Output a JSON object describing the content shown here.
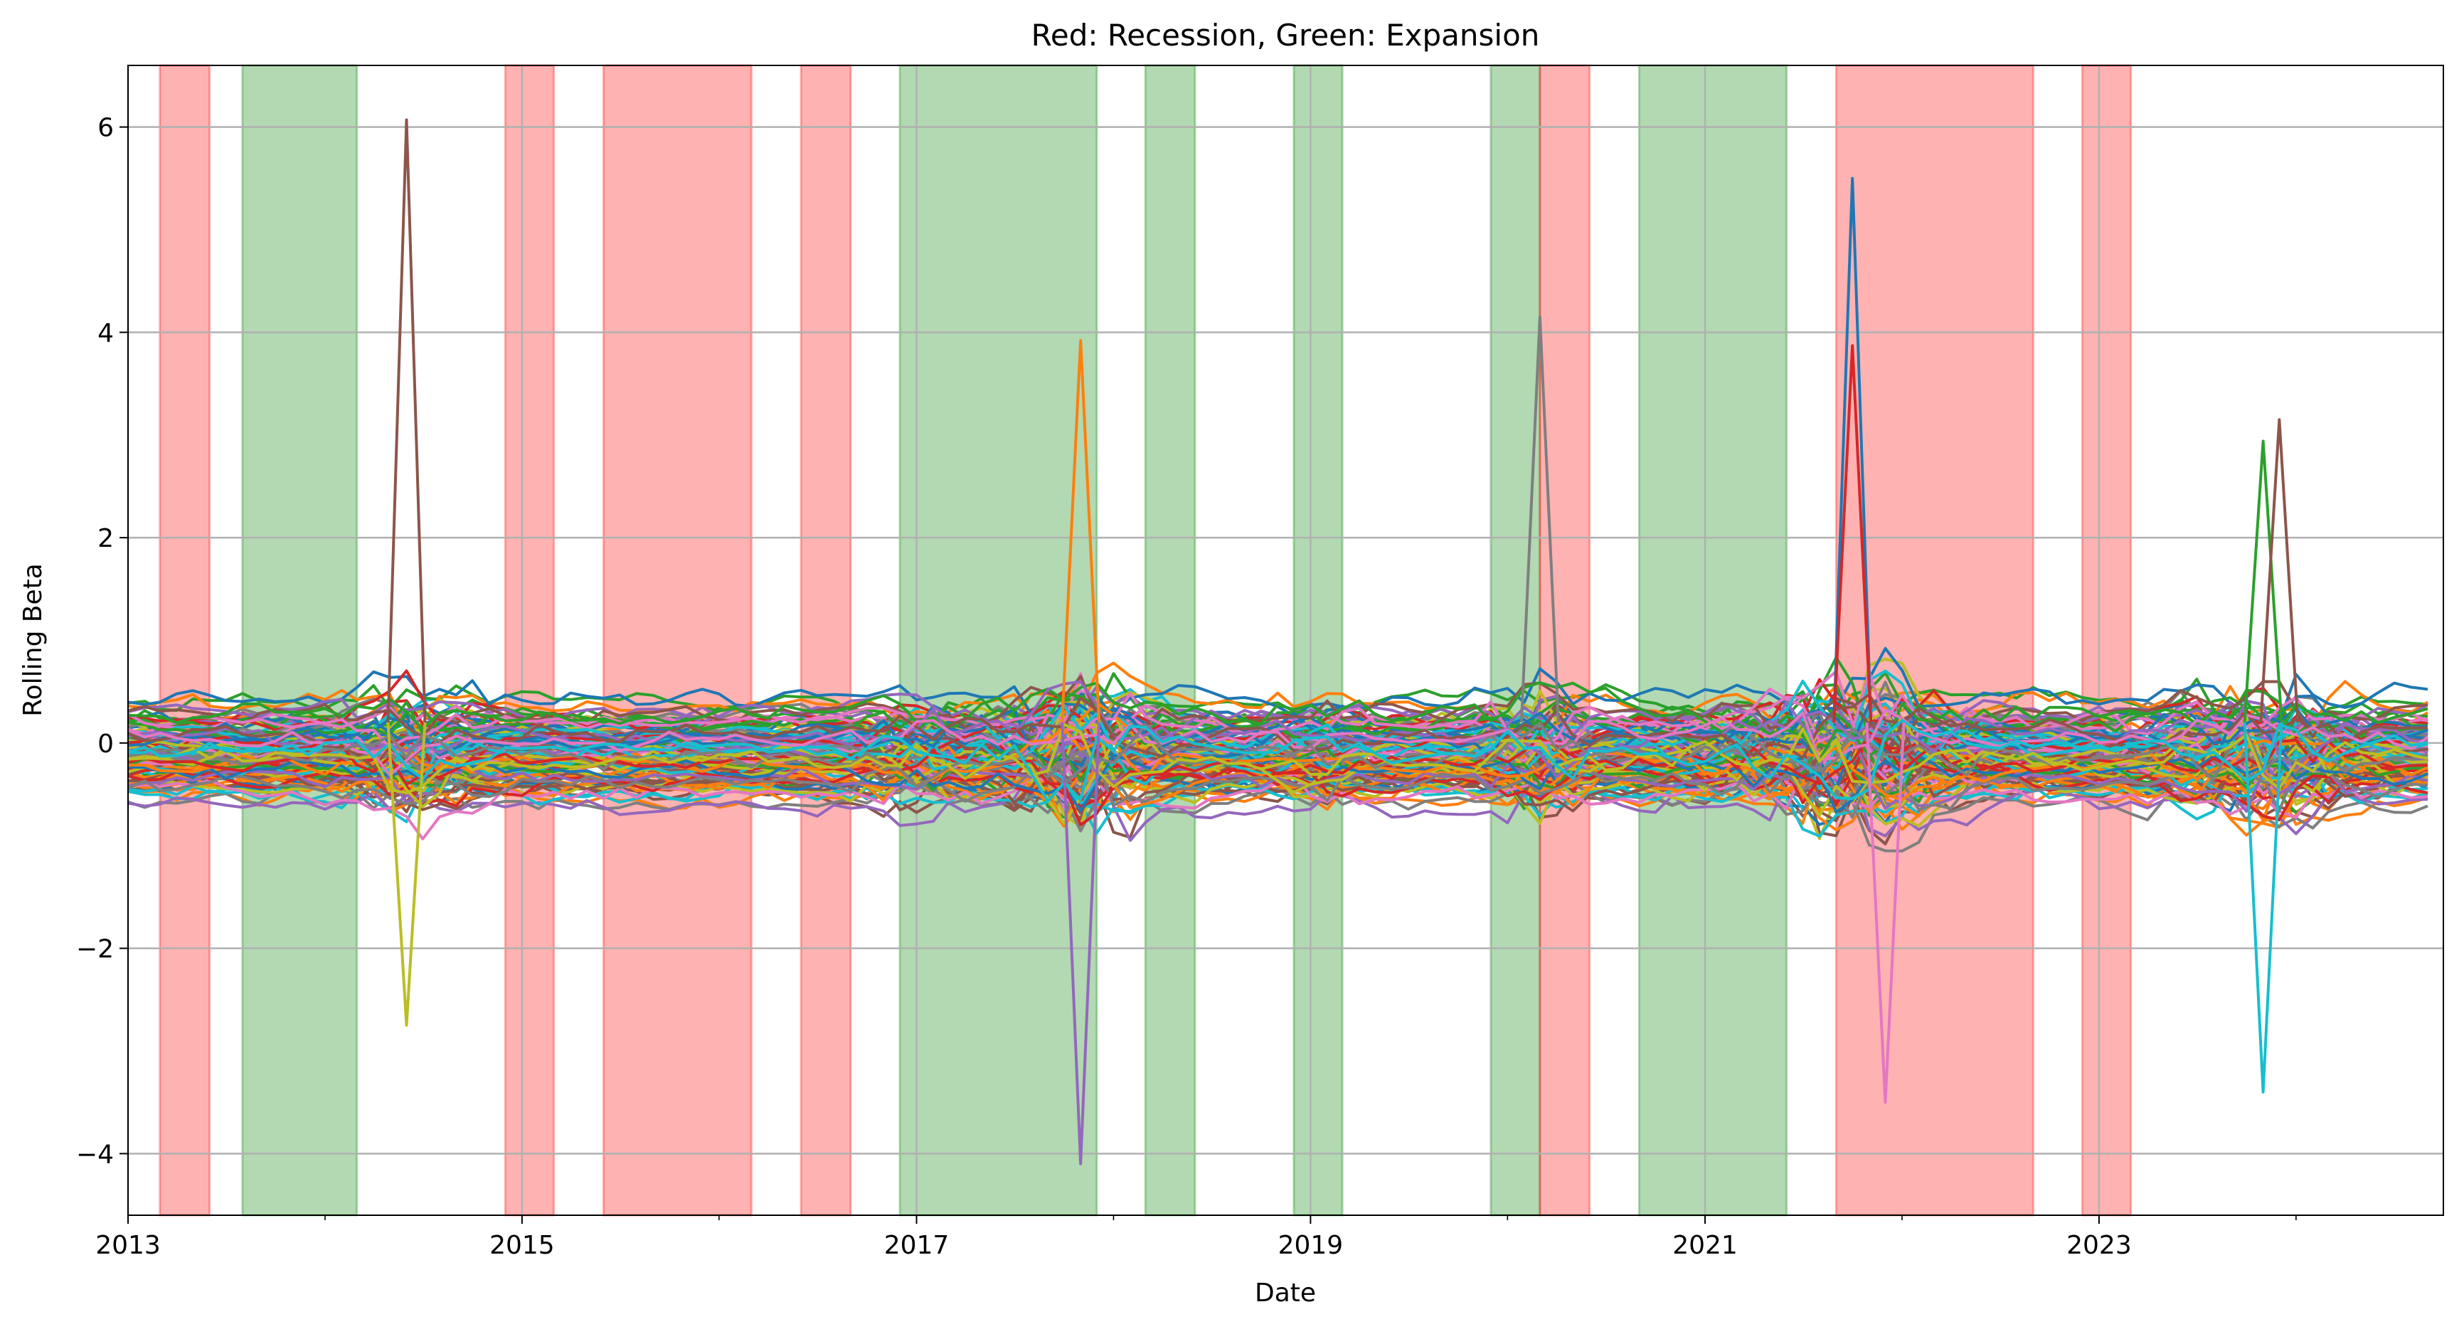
{
  "chart_data": {
    "type": "line",
    "title": "Red: Recession, Green: Expansion",
    "xlabel": "Date",
    "ylabel": "Rolling Beta",
    "xlim": [
      "2013-01-01",
      "2024-09-30"
    ],
    "ylim": [
      -4.6,
      6.6
    ],
    "grid": true,
    "x_ticks": [
      "2013",
      "2015",
      "2017",
      "2019",
      "2021",
      "2023"
    ],
    "y_ticks": [
      "−4",
      "−2",
      "0",
      "2",
      "4",
      "6"
    ],
    "y_tick_values": [
      -4,
      -2,
      0,
      2,
      4,
      6
    ],
    "regimes": [
      {
        "type": "recession",
        "start": "2013-03",
        "end": "2013-06"
      },
      {
        "type": "expansion",
        "start": "2013-08",
        "end": "2014-03"
      },
      {
        "type": "recession",
        "start": "2014-12",
        "end": "2015-03"
      },
      {
        "type": "recession",
        "start": "2015-06",
        "end": "2016-03"
      },
      {
        "type": "recession",
        "start": "2016-06",
        "end": "2016-09"
      },
      {
        "type": "expansion",
        "start": "2016-12",
        "end": "2017-12"
      },
      {
        "type": "expansion",
        "start": "2018-03",
        "end": "2018-06"
      },
      {
        "type": "expansion",
        "start": "2018-12",
        "end": "2019-03"
      },
      {
        "type": "expansion",
        "start": "2019-12",
        "end": "2020-03"
      },
      {
        "type": "recession",
        "start": "2020-03",
        "end": "2020-06"
      },
      {
        "type": "expansion",
        "start": "2020-09",
        "end": "2021-06"
      },
      {
        "type": "recession",
        "start": "2021-09",
        "end": "2022-09"
      },
      {
        "type": "recession",
        "start": "2022-12",
        "end": "2023-03"
      }
    ],
    "colors": {
      "recession": "#ff0000",
      "expansion": "#008000",
      "palette": [
        "#1f77b4",
        "#ff7f0e",
        "#2ca02c",
        "#d62728",
        "#9467bd",
        "#8c564b",
        "#e377c2",
        "#7f7f7f",
        "#bcbd22",
        "#17becf"
      ]
    },
    "series_count": 120,
    "notable_values": [
      {
        "date": "2014-06",
        "value": 6.07
      },
      {
        "date": "2014-06",
        "value": -2.75
      },
      {
        "date": "2017-11",
        "value": 3.92
      },
      {
        "date": "2017-11",
        "value": -4.1
      },
      {
        "date": "2020-03",
        "value": 4.15
      },
      {
        "date": "2021-10",
        "value": 5.5
      },
      {
        "date": "2021-10",
        "value": 3.87
      },
      {
        "date": "2021-12",
        "value": -3.5
      },
      {
        "date": "2023-11",
        "value": -3.4
      },
      {
        "date": "2023-11",
        "value": 2.94
      },
      {
        "date": "2023-12",
        "value": 3.15
      }
    ]
  }
}
